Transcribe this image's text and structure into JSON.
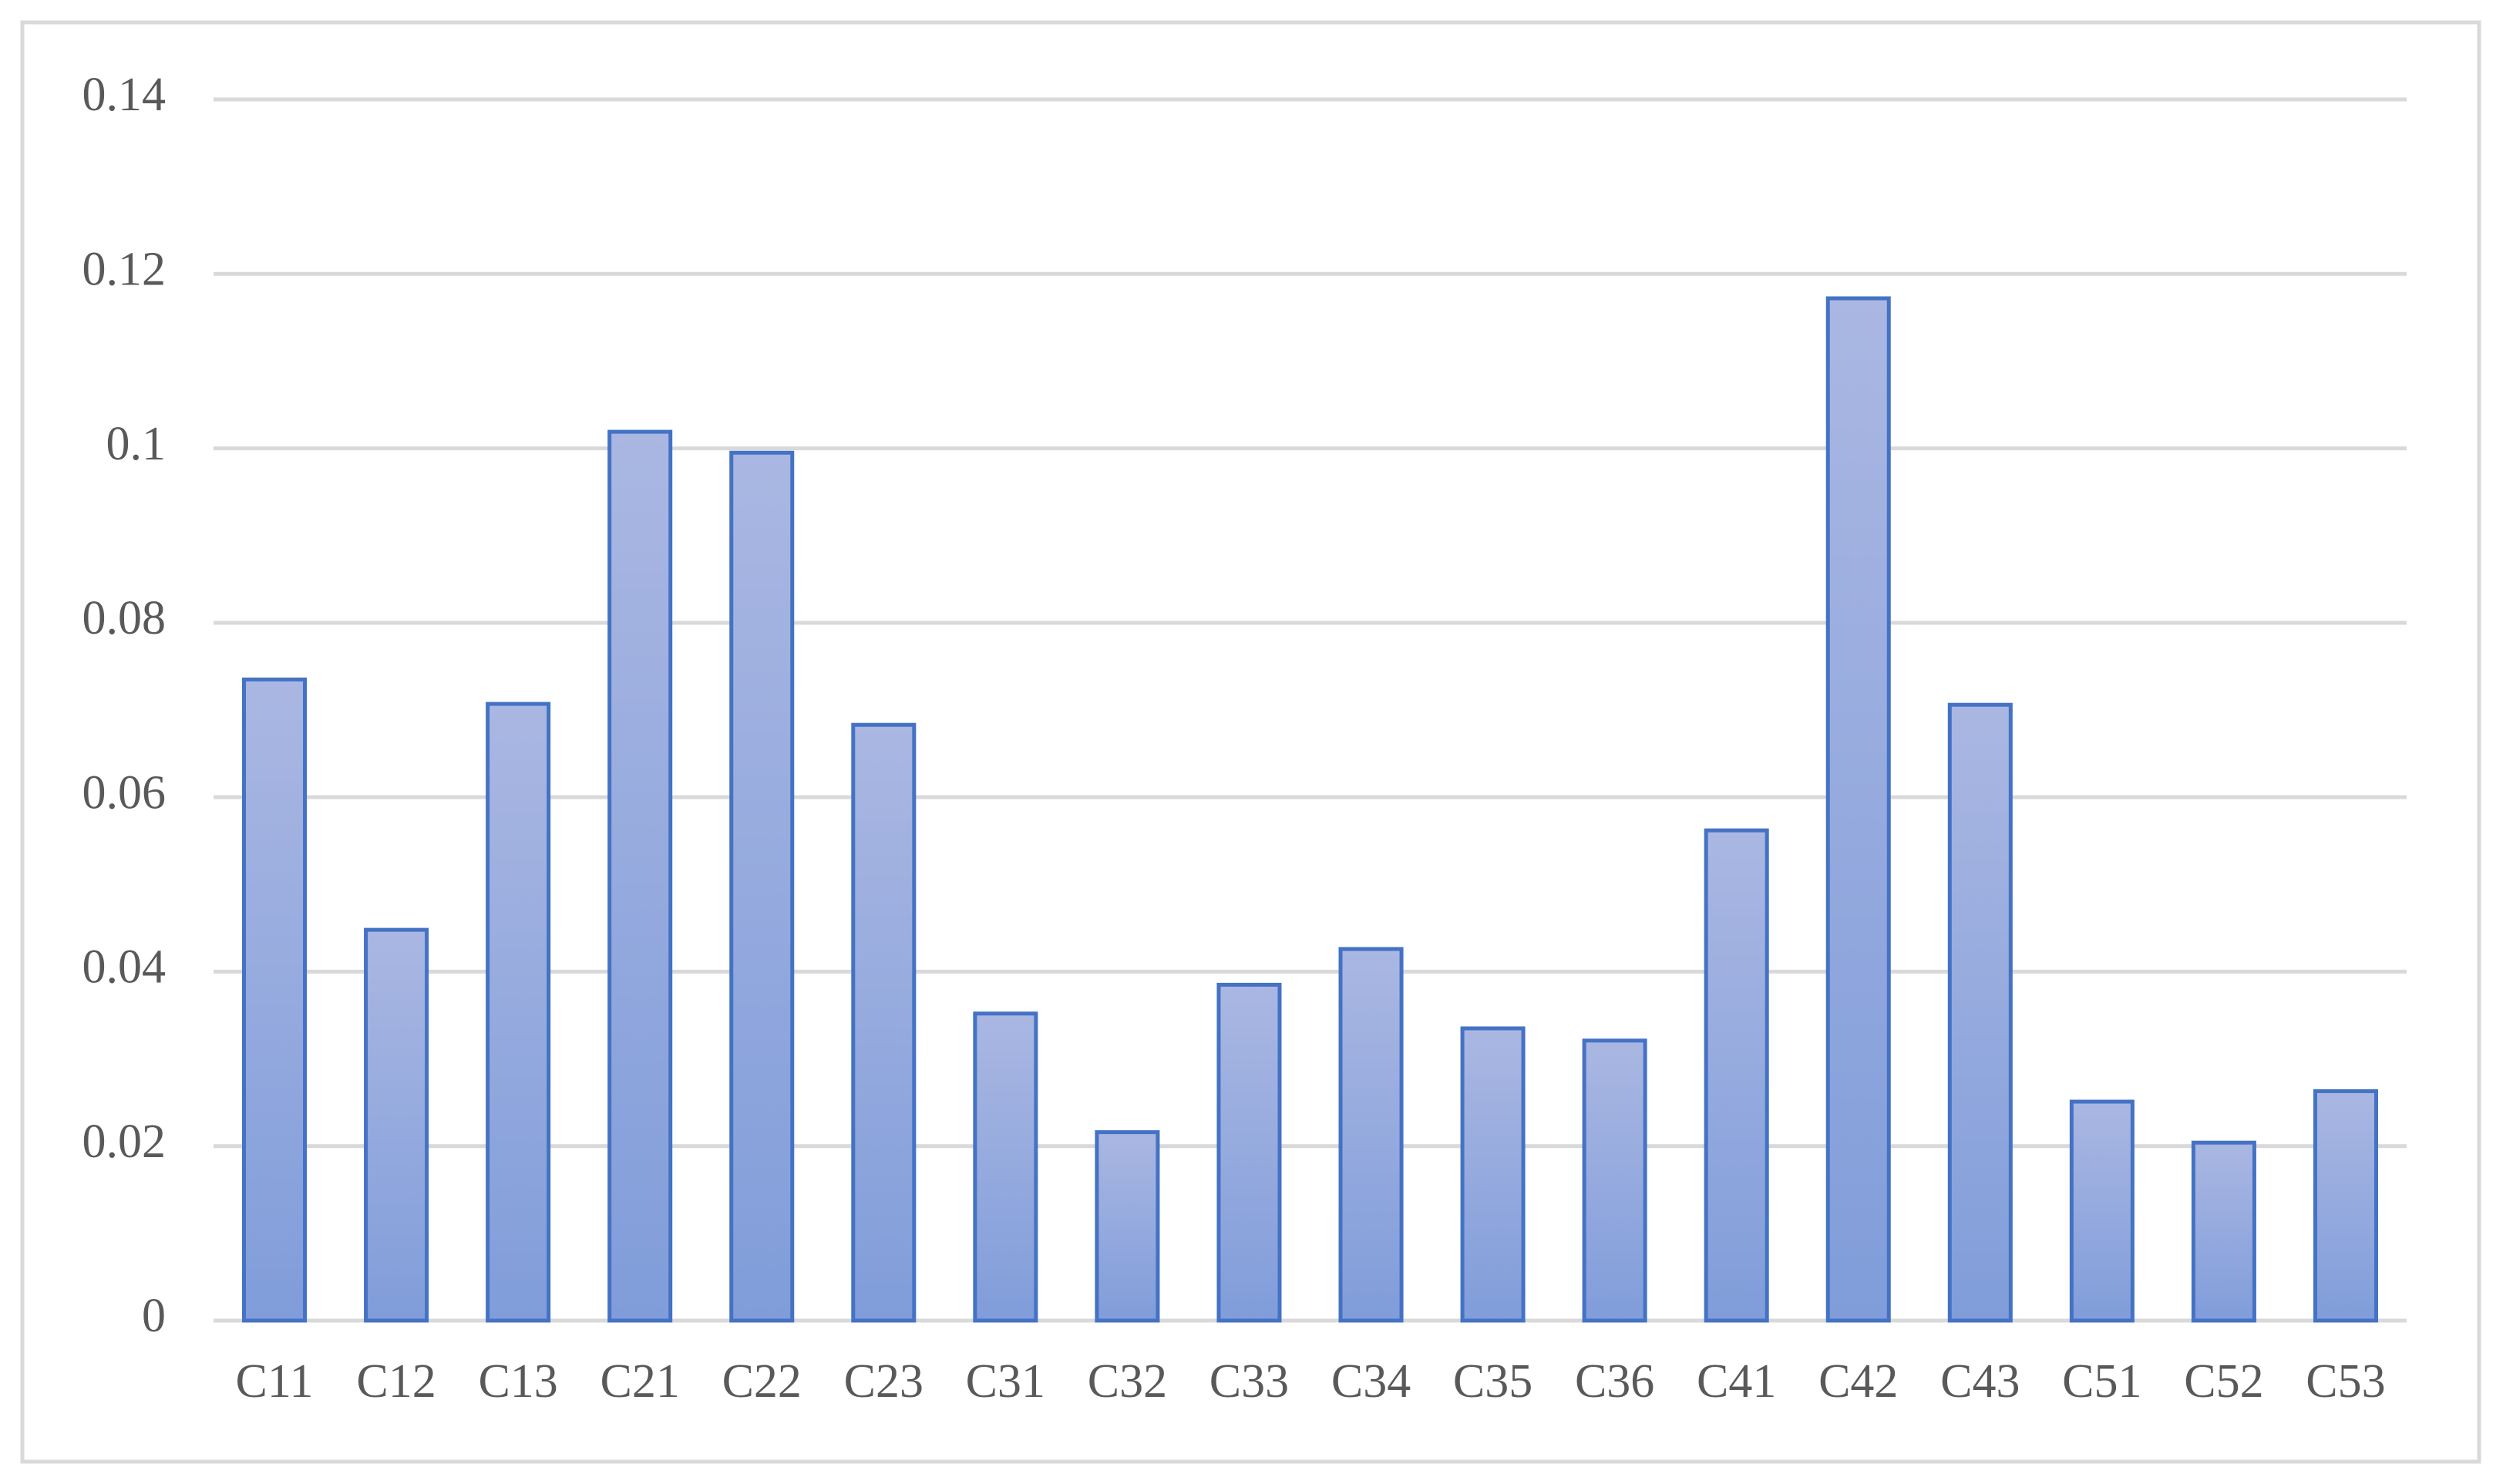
{
  "chart_data": {
    "type": "bar",
    "categories": [
      "C11",
      "C12",
      "C13",
      "C21",
      "C22",
      "C23",
      "C31",
      "C32",
      "C33",
      "C34",
      "C35",
      "C36",
      "C41",
      "C42",
      "C43",
      "C51",
      "C52",
      "C53"
    ],
    "values": [
      0.0735,
      0.0448,
      0.0707,
      0.1019,
      0.0995,
      0.0683,
      0.0352,
      0.0216,
      0.0385,
      0.0426,
      0.0335,
      0.0321,
      0.0562,
      0.1172,
      0.0706,
      0.0251,
      0.0204,
      0.0263
    ],
    "color": "#4472c4",
    "ylim": [
      0,
      0.14
    ],
    "yticks": [
      0,
      0.02,
      0.04,
      0.06,
      0.08,
      0.1,
      0.12,
      0.14
    ],
    "grid": true
  }
}
